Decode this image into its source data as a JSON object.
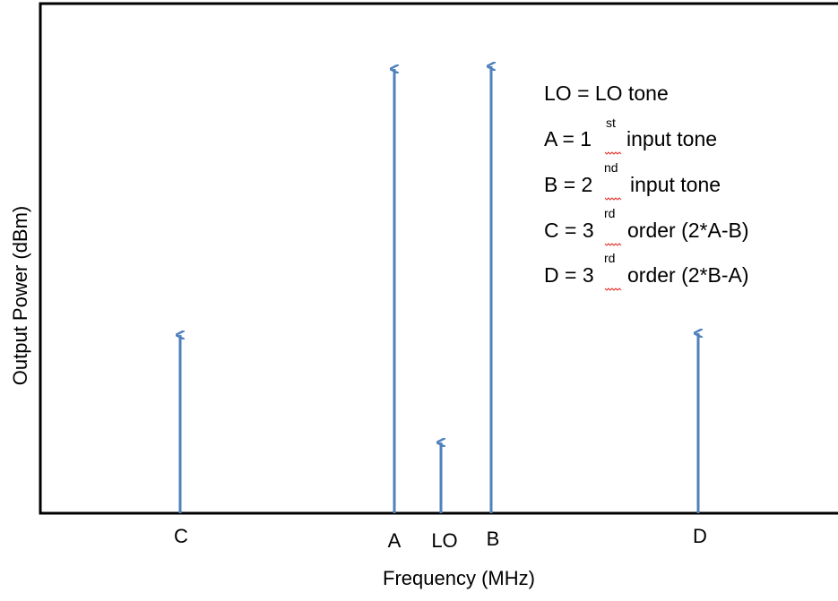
{
  "axes": {
    "x_label": "Frequency (MHz)",
    "y_label": "Output Power (dBm)"
  },
  "tones": [
    {
      "label": "C"
    },
    {
      "label": "A"
    },
    {
      "label": "LO"
    },
    {
      "label": "B"
    },
    {
      "label": "D"
    }
  ],
  "legend": [
    {
      "text": "LO = LO tone"
    },
    {
      "text": "A = 1",
      "sup": "st",
      "rest": "input tone"
    },
    {
      "text": "B = 2",
      "sup": "nd",
      "rest": "input tone"
    },
    {
      "text": "C = 3",
      "sup": "rd",
      "rest": "order (2*A-B)"
    },
    {
      "text": "D = 3",
      "sup": "rd",
      "rest": "order (2*B-A)"
    }
  ]
}
